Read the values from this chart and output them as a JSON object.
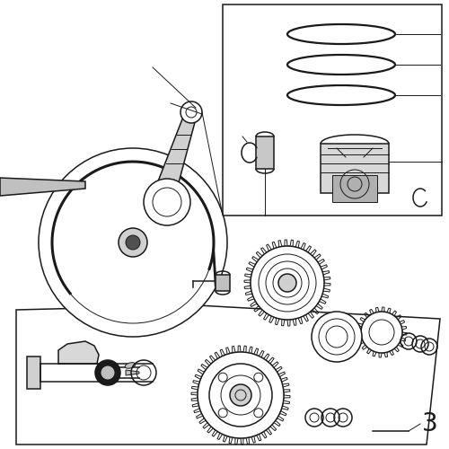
{
  "background_color": "#ffffff",
  "line_color": "#1a1a1a",
  "text_color": "#1a1a1a",
  "label_3_text": "3",
  "label_3_fontsize": 20,
  "fig_width": 5.0,
  "fig_height": 5.0,
  "dpi": 100,
  "lw_thin": 0.7,
  "lw_med": 1.1,
  "lw_thick": 1.6,
  "lw_vthick": 2.2
}
